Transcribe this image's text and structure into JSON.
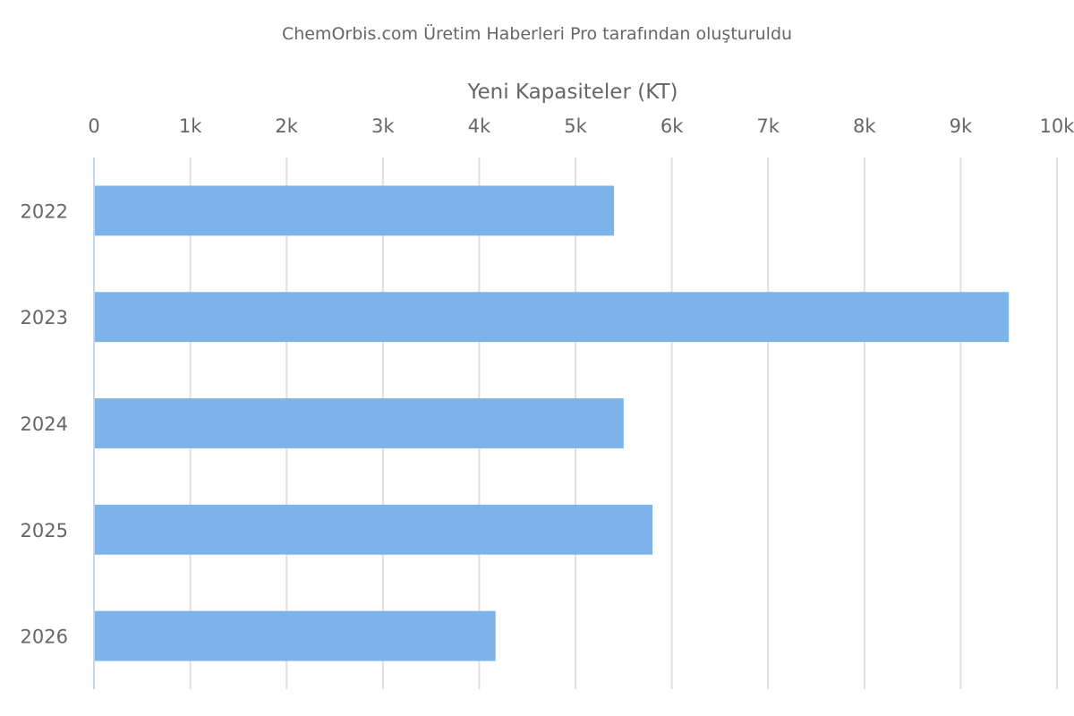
{
  "credit": "ChemOrbis.com Üretim Haberleri Pro tarafından oluşturuldu",
  "colors": {
    "bar": "#7cb4ea",
    "grid": "#e0e0e0",
    "text": "#666666"
  },
  "chart_data": {
    "type": "bar",
    "orientation": "horizontal",
    "title": "",
    "xlabel": "Yeni Kapasiteler (KT)",
    "ylabel": "",
    "categories": [
      "2022",
      "2023",
      "2024",
      "2025",
      "2026"
    ],
    "values": [
      5400,
      9500,
      5500,
      5800,
      4170
    ],
    "xlim": [
      0,
      10000
    ],
    "ticks": [
      0,
      1000,
      2000,
      3000,
      4000,
      5000,
      6000,
      7000,
      8000,
      9000,
      10000
    ],
    "tick_labels": [
      "0",
      "1k",
      "2k",
      "3k",
      "4k",
      "5k",
      "6k",
      "7k",
      "8k",
      "9k",
      "10k"
    ],
    "x_axis_position": "top",
    "grid": true,
    "legend": false
  }
}
